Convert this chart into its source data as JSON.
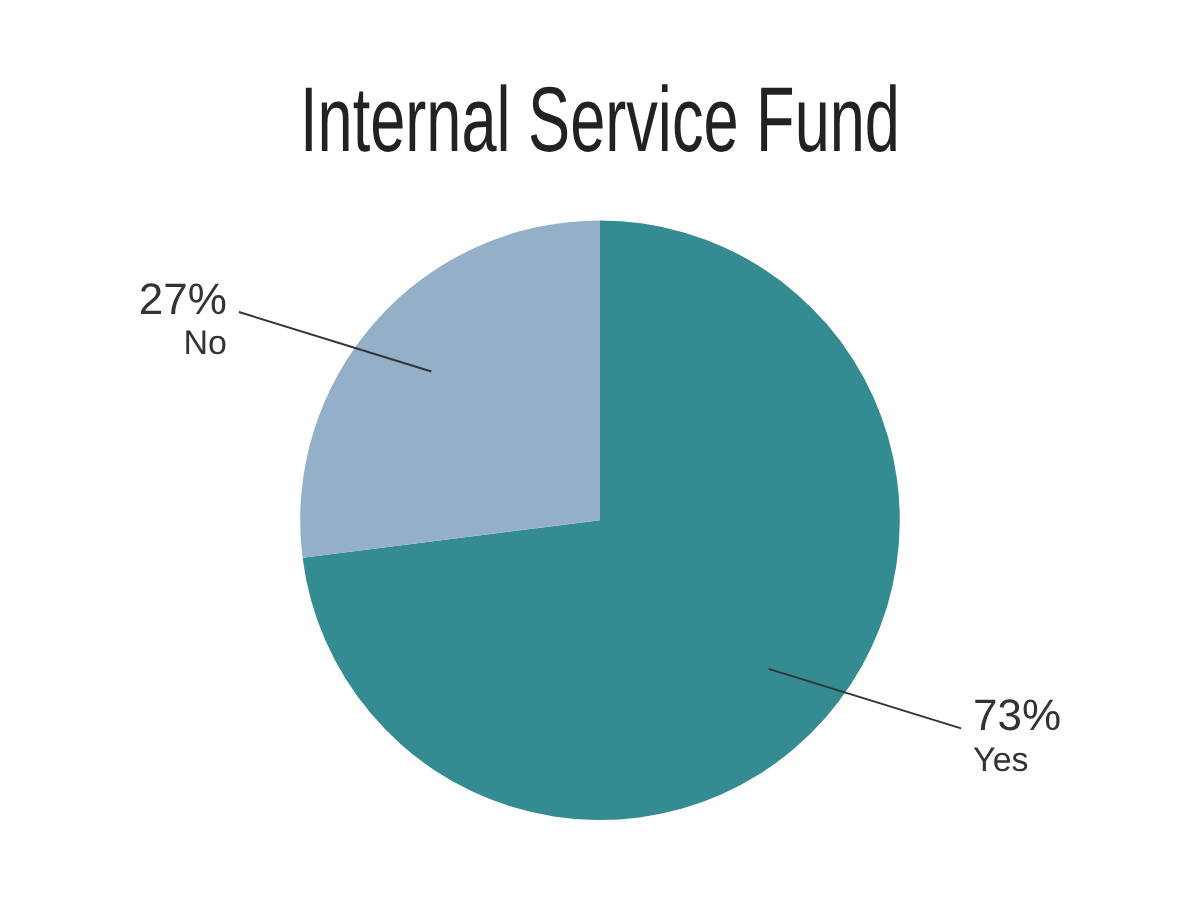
{
  "chart_data": {
    "type": "pie",
    "title": "Internal Service Fund",
    "categories": [
      "Yes",
      "No"
    ],
    "values": [
      73,
      27
    ],
    "colors": [
      "#348c92",
      "#93b0c8"
    ],
    "value_labels": [
      "73%",
      "27%"
    ],
    "legend": false
  }
}
